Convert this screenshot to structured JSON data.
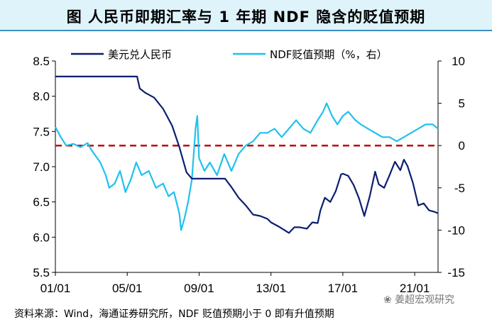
{
  "title": "图  人民币即期汇率与 1 年期 NDF 隐含的贬值预期",
  "source": "资料来源：Wind，海通证券研究所，NDF 贬值预期小于 0 即有升值预期",
  "watermark": "❀ 姜超宏观研究",
  "colors": {
    "series1": "#0b1f70",
    "series2": "#1fc1ee",
    "reference": "#c00000"
  },
  "chart_data": {
    "type": "line",
    "title": "人民币即期汇率与 1 年期 NDF 隐含的贬值预期",
    "x_range": [
      2001.0,
      2022.3
    ],
    "x_ticks": [
      {
        "value": 2001,
        "label": "01/01"
      },
      {
        "value": 2005,
        "label": "05/01"
      },
      {
        "value": 2009,
        "label": "09/01"
      },
      {
        "value": 2013,
        "label": "13/01"
      },
      {
        "value": 2017,
        "label": "17/01"
      },
      {
        "value": 2021,
        "label": "21/01"
      }
    ],
    "y_left": {
      "range": [
        5.5,
        8.5
      ],
      "ticks": [
        "5.5",
        "6.0",
        "6.5",
        "7.0",
        "7.5",
        "8.0",
        "8.5"
      ]
    },
    "y_right": {
      "range": [
        -15,
        10
      ],
      "ticks": [
        "-15",
        "-10",
        "-5",
        "0",
        "5",
        "10"
      ]
    },
    "reference_line": {
      "axis": "right",
      "value": 0,
      "style": "dashed"
    },
    "series": [
      {
        "name": "美元兑人民币",
        "axis": "left",
        "x": [
          2001.0,
          2005.55,
          2005.7,
          2006.0,
          2006.5,
          2007.0,
          2007.5,
          2007.9,
          2008.3,
          2008.6,
          2009.0,
          2010.0,
          2010.45,
          2010.8,
          2011.2,
          2011.6,
          2012.0,
          2012.4,
          2012.8,
          2013.0,
          2013.5,
          2014.0,
          2014.3,
          2014.6,
          2015.0,
          2015.3,
          2015.6,
          2015.75,
          2016.0,
          2016.3,
          2016.6,
          2016.9,
          2017.0,
          2017.3,
          2017.6,
          2017.9,
          2018.2,
          2018.5,
          2018.8,
          2019.0,
          2019.3,
          2019.6,
          2019.9,
          2020.2,
          2020.4,
          2020.6,
          2020.9,
          2021.2,
          2021.5,
          2021.8,
          2022.1,
          2022.3
        ],
        "y": [
          8.28,
          8.28,
          8.11,
          8.05,
          7.98,
          7.82,
          7.58,
          7.28,
          6.92,
          6.83,
          6.83,
          6.83,
          6.83,
          6.71,
          6.56,
          6.45,
          6.32,
          6.3,
          6.26,
          6.21,
          6.14,
          6.06,
          6.14,
          6.14,
          6.12,
          6.21,
          6.2,
          6.38,
          6.56,
          6.5,
          6.65,
          6.89,
          6.9,
          6.87,
          6.74,
          6.55,
          6.3,
          6.58,
          6.93,
          6.75,
          6.7,
          6.88,
          7.07,
          6.95,
          7.1,
          7.01,
          6.77,
          6.45,
          6.48,
          6.38,
          6.36,
          6.34
        ]
      },
      {
        "name": "NDF贬值预期（%，右）",
        "axis": "right",
        "x": [
          2001.0,
          2001.3,
          2001.6,
          2002.0,
          2002.4,
          2002.8,
          2003.0,
          2003.5,
          2003.8,
          2004.0,
          2004.3,
          2004.6,
          2004.9,
          2005.2,
          2005.5,
          2005.8,
          2006.2,
          2006.6,
          2007.0,
          2007.3,
          2007.6,
          2007.9,
          2008.0,
          2008.2,
          2008.4,
          2008.6,
          2008.8,
          2008.9,
          2009.0,
          2009.3,
          2009.6,
          2010.0,
          2010.4,
          2010.8,
          2011.2,
          2011.6,
          2012.0,
          2012.4,
          2012.8,
          2013.2,
          2013.6,
          2014.0,
          2014.4,
          2014.8,
          2015.2,
          2015.6,
          2015.9,
          2016.1,
          2016.4,
          2016.7,
          2017.0,
          2017.3,
          2017.7,
          2018.0,
          2018.4,
          2018.8,
          2019.2,
          2019.6,
          2020.0,
          2020.4,
          2020.8,
          2021.2,
          2021.6,
          2022.0,
          2022.3
        ],
        "y": [
          2.2,
          1.0,
          0.0,
          0.2,
          -0.2,
          0.3,
          -0.5,
          -2.0,
          -3.5,
          -5.0,
          -4.5,
          -3.0,
          -5.5,
          -4.0,
          -2.0,
          -3.5,
          -3.0,
          -5.0,
          -4.5,
          -6.0,
          -5.5,
          -8.0,
          -10.0,
          -8.5,
          -6.5,
          -4.0,
          2.0,
          3.5,
          -1.5,
          -3.0,
          -2.0,
          -3.5,
          -1.0,
          -3.0,
          -1.0,
          0.0,
          0.5,
          1.5,
          1.5,
          2.0,
          1.0,
          2.0,
          3.0,
          2.0,
          1.5,
          3.0,
          4.0,
          5.0,
          3.5,
          2.5,
          3.5,
          4.0,
          3.0,
          2.5,
          2.0,
          1.5,
          1.0,
          1.0,
          0.5,
          1.0,
          1.5,
          2.0,
          2.5,
          2.5,
          2.0
        ]
      }
    ]
  }
}
